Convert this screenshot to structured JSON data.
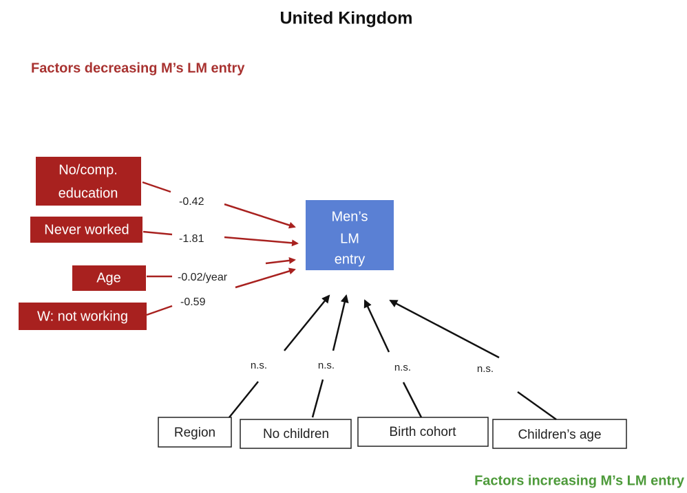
{
  "title": "United Kingdom",
  "decreasing_heading": "Factors decreasing M’s LM entry",
  "increasing_heading": "Factors increasing M’s LM entry",
  "center": {
    "lines": [
      "Men’s",
      "LM",
      "entry"
    ]
  },
  "decreasing": [
    {
      "lines": [
        "No/comp.",
        "education"
      ],
      "effect": "-0.42"
    },
    {
      "lines": [
        "Never worked"
      ],
      "effect": "-1.81"
    },
    {
      "lines": [
        "Age"
      ],
      "effect": "-0.02/year"
    },
    {
      "lines": [
        "W: not working"
      ],
      "effect": "-0.59"
    }
  ],
  "increasing": [
    {
      "label": "Region",
      "effect": "n.s."
    },
    {
      "label": "No children",
      "effect": "n.s."
    },
    {
      "label": "Birth cohort",
      "effect": "n.s."
    },
    {
      "label": "Children’s age",
      "effect": "n.s."
    }
  ]
}
